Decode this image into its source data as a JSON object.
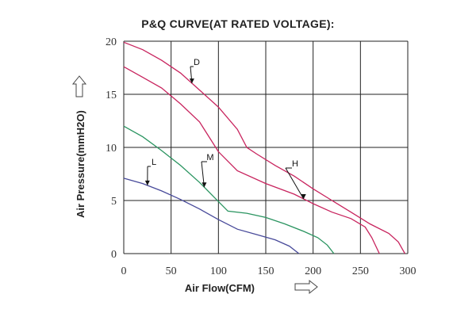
{
  "chart_data": {
    "type": "line",
    "title": "P&Q CURVE(AT RATED VOLTAGE):",
    "xlabel": "Air Flow(CFM)",
    "ylabel": "Air Pressure(mmH2O)",
    "xlim": [
      0,
      300
    ],
    "ylim": [
      0,
      20
    ],
    "xticks": [
      "0",
      "50",
      "100",
      "150",
      "200",
      "250",
      "300"
    ],
    "yticks": [
      "0",
      "5",
      "10",
      "15",
      "20"
    ],
    "grid": true,
    "series": [
      {
        "name": "D",
        "color": "#c8245e",
        "points": [
          [
            0,
            19.9
          ],
          [
            20,
            19.2
          ],
          [
            40,
            18.2
          ],
          [
            60,
            17.0
          ],
          [
            80,
            15.4
          ],
          [
            100,
            13.8
          ],
          [
            120,
            11.7
          ],
          [
            130,
            10.0
          ],
          [
            140,
            9.4
          ],
          [
            160,
            8.3
          ],
          [
            180,
            7.3
          ],
          [
            200,
            6.1
          ],
          [
            220,
            5.0
          ],
          [
            240,
            3.9
          ],
          [
            260,
            2.8
          ],
          [
            280,
            1.9
          ],
          [
            290,
            1.1
          ],
          [
            297,
            0
          ]
        ]
      },
      {
        "name": "H",
        "color": "#c8245e",
        "points": [
          [
            0,
            17.6
          ],
          [
            20,
            16.6
          ],
          [
            40,
            15.6
          ],
          [
            60,
            14.1
          ],
          [
            80,
            12.4
          ],
          [
            100,
            9.6
          ],
          [
            120,
            7.8
          ],
          [
            150,
            6.6
          ],
          [
            180,
            5.6
          ],
          [
            200,
            4.7
          ],
          [
            220,
            3.9
          ],
          [
            240,
            3.3
          ],
          [
            255,
            2.5
          ],
          [
            262,
            1.5
          ],
          [
            270,
            0
          ]
        ]
      },
      {
        "name": "M",
        "color": "#2a9460",
        "points": [
          [
            0,
            12.0
          ],
          [
            20,
            11.0
          ],
          [
            40,
            9.7
          ],
          [
            60,
            8.3
          ],
          [
            80,
            6.7
          ],
          [
            100,
            4.9
          ],
          [
            110,
            4.0
          ],
          [
            130,
            3.8
          ],
          [
            150,
            3.4
          ],
          [
            170,
            2.8
          ],
          [
            190,
            2.1
          ],
          [
            205,
            1.5
          ],
          [
            215,
            0.8
          ],
          [
            222,
            0
          ]
        ]
      },
      {
        "name": "L",
        "color": "#484a9a",
        "points": [
          [
            0,
            7.1
          ],
          [
            20,
            6.6
          ],
          [
            40,
            5.9
          ],
          [
            60,
            5.1
          ],
          [
            80,
            4.2
          ],
          [
            100,
            3.2
          ],
          [
            120,
            2.3
          ],
          [
            140,
            1.8
          ],
          [
            160,
            1.3
          ],
          [
            175,
            0.7
          ],
          [
            185,
            0
          ]
        ]
      }
    ]
  }
}
